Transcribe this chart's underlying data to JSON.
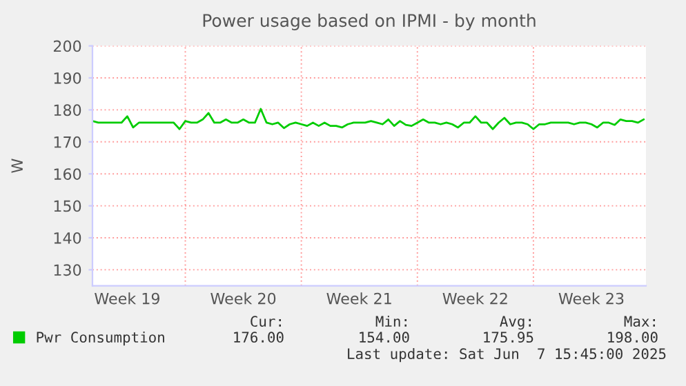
{
  "chart_data": {
    "type": "line",
    "title": "Power usage based on IPMI - by month",
    "ylabel": "W",
    "categories": [
      null,
      null,
      null,
      null,
      null,
      null,
      "Week 19",
      null,
      null,
      null,
      null,
      null,
      null,
      null,
      null,
      null,
      null,
      null,
      null,
      null,
      null,
      null,
      null,
      null,
      null,
      null,
      "Week 20",
      null,
      null,
      null,
      null,
      null,
      null,
      null,
      null,
      null,
      null,
      null,
      null,
      null,
      null,
      null,
      null,
      null,
      null,
      null,
      "Week 21",
      null,
      null,
      null,
      null,
      null,
      null,
      null,
      null,
      null,
      null,
      null,
      null,
      null,
      null,
      null,
      null,
      null,
      null,
      null,
      "Week 22",
      null,
      null,
      null,
      null,
      null,
      null,
      null,
      null,
      null,
      null,
      null,
      null,
      null,
      null,
      null,
      null,
      null,
      null,
      null,
      "Week 23",
      null,
      null,
      null,
      null,
      null,
      null,
      null,
      null,
      null
    ],
    "ylim": [
      125,
      200
    ],
    "yticks": [
      130,
      140,
      150,
      160,
      170,
      180,
      190,
      200
    ],
    "grid": true,
    "legend": "bottom left",
    "marker": "none",
    "line_style": "solid",
    "series": [
      {
        "name": "Pwr Consumption",
        "color": "#00cc00",
        "values": [
          176.5,
          176,
          176,
          176,
          176,
          176,
          178,
          174.5,
          176,
          176,
          176,
          176,
          176,
          176,
          176,
          174,
          176.5,
          176,
          176,
          177,
          179,
          176,
          176,
          177,
          176,
          176,
          177,
          176,
          176,
          180.3,
          176,
          175.5,
          176,
          174.3,
          175.5,
          176,
          175.5,
          175,
          176,
          175,
          176,
          175,
          175,
          174.5,
          175.5,
          176,
          176,
          176,
          176.5,
          176,
          175.5,
          177,
          175,
          176.5,
          175.3,
          175,
          176,
          177,
          176,
          176,
          175.5,
          176,
          175.5,
          174.5,
          176,
          176,
          178,
          176,
          176,
          174,
          176,
          177.5,
          175.5,
          176,
          176,
          175.5,
          174,
          175.5,
          175.5,
          176,
          176,
          176,
          176,
          175.5,
          176,
          176,
          175.5,
          174.5,
          176,
          176,
          175.3,
          177,
          176.5,
          176.5,
          176,
          177
        ]
      }
    ],
    "annotations": [
      "Cur:",
      "176.00",
      "Min:",
      "154.00",
      "Avg:",
      "175.95",
      "Max:",
      "198.00",
      "Last update: Sat Jun  7 15:45:00 2025"
    ]
  }
}
